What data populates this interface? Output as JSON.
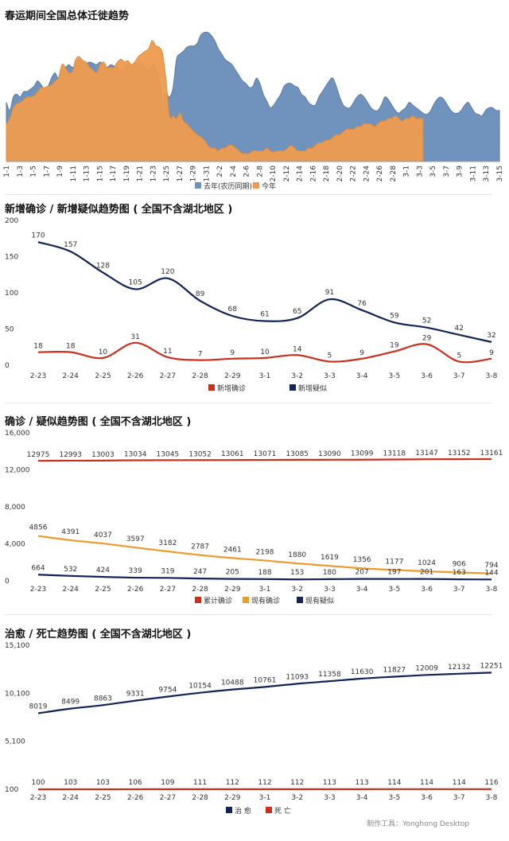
{
  "titles": {
    "migration": "春运期间全国总体迁徙趋势",
    "new": "新增确诊 / 新增疑似趋势图 ( 全国不含湖北地区 )",
    "confirmed": "确诊 / 疑似趋势图 ( 全国不含湖北地区 )",
    "recovered": "治愈 / 死亡趋势图 ( 全国不含湖北地区 )"
  },
  "footer": "制作工具：Yonghong Desktop",
  "colors": {
    "lastYear": "#6f93bd",
    "thisYear": "#ee9b4e",
    "red": "#c9301d",
    "navy": "#122358",
    "orange": "#ee9b2e"
  },
  "chart_data": [
    {
      "type": "area",
      "title": "春运期间全国总体迁徙趋势",
      "x_ticks": [
        "1-1",
        "1-3",
        "1-5",
        "1-7",
        "1-9",
        "1-11",
        "1-13",
        "1-15",
        "1-17",
        "1-19",
        "1-21",
        "1-23",
        "1-25",
        "1-27",
        "1-29",
        "1-31",
        "2-2",
        "2-4",
        "2-6",
        "2-8",
        "2-10",
        "2-12",
        "2-14",
        "2-16",
        "2-18",
        "2-20",
        "2-22",
        "2-24",
        "2-26",
        "2-28",
        "3-1",
        "3-3",
        "3-5",
        "3-7",
        "3-9",
        "3-11",
        "3-13",
        "3-15"
      ],
      "ylim": [
        0,
        100
      ],
      "series": [
        {
          "name": "去年(农历同期)",
          "color": "#6f93bd",
          "values": [
            44,
            38,
            48,
            50,
            48,
            52,
            52,
            54,
            56,
            60,
            57,
            54,
            56,
            62,
            66,
            62,
            69,
            70,
            72,
            70,
            72,
            76,
            74,
            73,
            74,
            73,
            72,
            74,
            72,
            70,
            72,
            71,
            70,
            68,
            69,
            72,
            71,
            72,
            74,
            73,
            70,
            68,
            72,
            70,
            62,
            48,
            51,
            48,
            55,
            76,
            80,
            82,
            85,
            86,
            86,
            88,
            94,
            96,
            96,
            94,
            90,
            84,
            80,
            76,
            74,
            72,
            68,
            64,
            60,
            58,
            55,
            56,
            62,
            58,
            50,
            45,
            40,
            42,
            46,
            50,
            56,
            58,
            58,
            56,
            55,
            50,
            48,
            44,
            42,
            42,
            48,
            52,
            56,
            60,
            62,
            56,
            48,
            42,
            40,
            40,
            44,
            48,
            50,
            48,
            44,
            40,
            38,
            38,
            42,
            48,
            46,
            42,
            38,
            36,
            38,
            40,
            44,
            42,
            40,
            38,
            36,
            35,
            37,
            42,
            46,
            48,
            46,
            42,
            38,
            36,
            36,
            38,
            42,
            44,
            40,
            36,
            35,
            34,
            38,
            40,
            40,
            38,
            38
          ]
        },
        {
          "name": "今年",
          "color": "#ee9b4e",
          "values": [
            28,
            32,
            40,
            43,
            44,
            46,
            48,
            48,
            49,
            52,
            55,
            55,
            56,
            57,
            60,
            62,
            72,
            70,
            66,
            67,
            76,
            78,
            75,
            74,
            70,
            68,
            66,
            72,
            74,
            70,
            70,
            70,
            74,
            76,
            74,
            75,
            72,
            74,
            78,
            80,
            82,
            84,
            90,
            86,
            85,
            80,
            60,
            34,
            34,
            32,
            36,
            30,
            28,
            25,
            22,
            20,
            18,
            16,
            12,
            10,
            10,
            8,
            10,
            10,
            12,
            12,
            10,
            8,
            6,
            6,
            6,
            8,
            8,
            8,
            8,
            10,
            8,
            7,
            8,
            8,
            8,
            10,
            12,
            10,
            8,
            8,
            8,
            10,
            10,
            12,
            14,
            14,
            16,
            16,
            18,
            20,
            20,
            22,
            24,
            24,
            24,
            26,
            26,
            28,
            28,
            28,
            26,
            28,
            30,
            30,
            32,
            32,
            34,
            32,
            30,
            32,
            32,
            34,
            32,
            32,
            32
          ]
        }
      ]
    },
    {
      "type": "line",
      "title": "新增确诊 / 新增疑似趋势图 ( 全国不含湖北地区 )",
      "categories": [
        "2-23",
        "2-24",
        "2-25",
        "2-26",
        "2-27",
        "2-28",
        "2-29",
        "3-1",
        "3-2",
        "3-3",
        "3-4",
        "3-5",
        "3-6",
        "3-7",
        "3-8"
      ],
      "y_ticks": [
        "0",
        "50",
        "100",
        "150",
        "200"
      ],
      "ylim": [
        0,
        200
      ],
      "series": [
        {
          "name": "新增确诊",
          "color": "#c9301d",
          "values": [
            18,
            18,
            10,
            31,
            11,
            7,
            9,
            10,
            14,
            5,
            9,
            19,
            29,
            5,
            9
          ]
        },
        {
          "name": "新增疑似",
          "color": "#122358",
          "values": [
            170,
            157,
            128,
            105,
            120,
            89,
            68,
            61,
            65,
            91,
            76,
            59,
            52,
            42,
            32
          ]
        }
      ]
    },
    {
      "type": "line",
      "title": "确诊 / 疑似趋势图 ( 全国不含湖北地区 )",
      "categories": [
        "2-23",
        "2-24",
        "2-25",
        "2-26",
        "2-27",
        "2-28",
        "2-29",
        "3-1",
        "3-2",
        "3-3",
        "3-4",
        "3-5",
        "3-6",
        "3-7",
        "3-8"
      ],
      "y_ticks": [
        "0",
        "4,000",
        "8,000",
        "12,000",
        "16,000"
      ],
      "ylim": [
        0,
        16000
      ],
      "series": [
        {
          "name": "累计确诊",
          "color": "#c9301d",
          "values": [
            12975,
            12993,
            13003,
            13034,
            13045,
            13052,
            13061,
            13071,
            13085,
            13090,
            13099,
            13118,
            13147,
            13152,
            13161
          ]
        },
        {
          "name": "现有确诊",
          "color": "#ee9b2e",
          "values": [
            4856,
            4391,
            4037,
            3597,
            3182,
            2787,
            2461,
            2198,
            1880,
            1619,
            1356,
            1177,
            1024,
            906,
            794
          ]
        },
        {
          "name": "现有疑似",
          "color": "#122358",
          "values": [
            664,
            532,
            424,
            339,
            319,
            247,
            205,
            188,
            153,
            180,
            207,
            197,
            201,
            163,
            144
          ]
        }
      ]
    },
    {
      "type": "line",
      "title": "治愈 / 死亡趋势图 ( 全国不含湖北地区 )",
      "categories": [
        "2-23",
        "2-24",
        "2-25",
        "2-26",
        "2-27",
        "2-28",
        "2-29",
        "3-1",
        "3-2",
        "3-3",
        "3-4",
        "3-5",
        "3-6",
        "3-7",
        "3-8"
      ],
      "y_ticks": [
        "100",
        "5,100",
        "10,100",
        "15,100"
      ],
      "ylim": [
        100,
        15100
      ],
      "series": [
        {
          "name": "治 愈",
          "color": "#122358",
          "values": [
            8019,
            8499,
            8863,
            9331,
            9754,
            10154,
            10488,
            10761,
            11093,
            11358,
            11630,
            11827,
            12009,
            12132,
            12251
          ]
        },
        {
          "name": "死 亡",
          "color": "#c9301d",
          "values": [
            100,
            103,
            103,
            106,
            109,
            111,
            112,
            112,
            112,
            113,
            113,
            114,
            114,
            114,
            116
          ]
        }
      ]
    }
  ]
}
